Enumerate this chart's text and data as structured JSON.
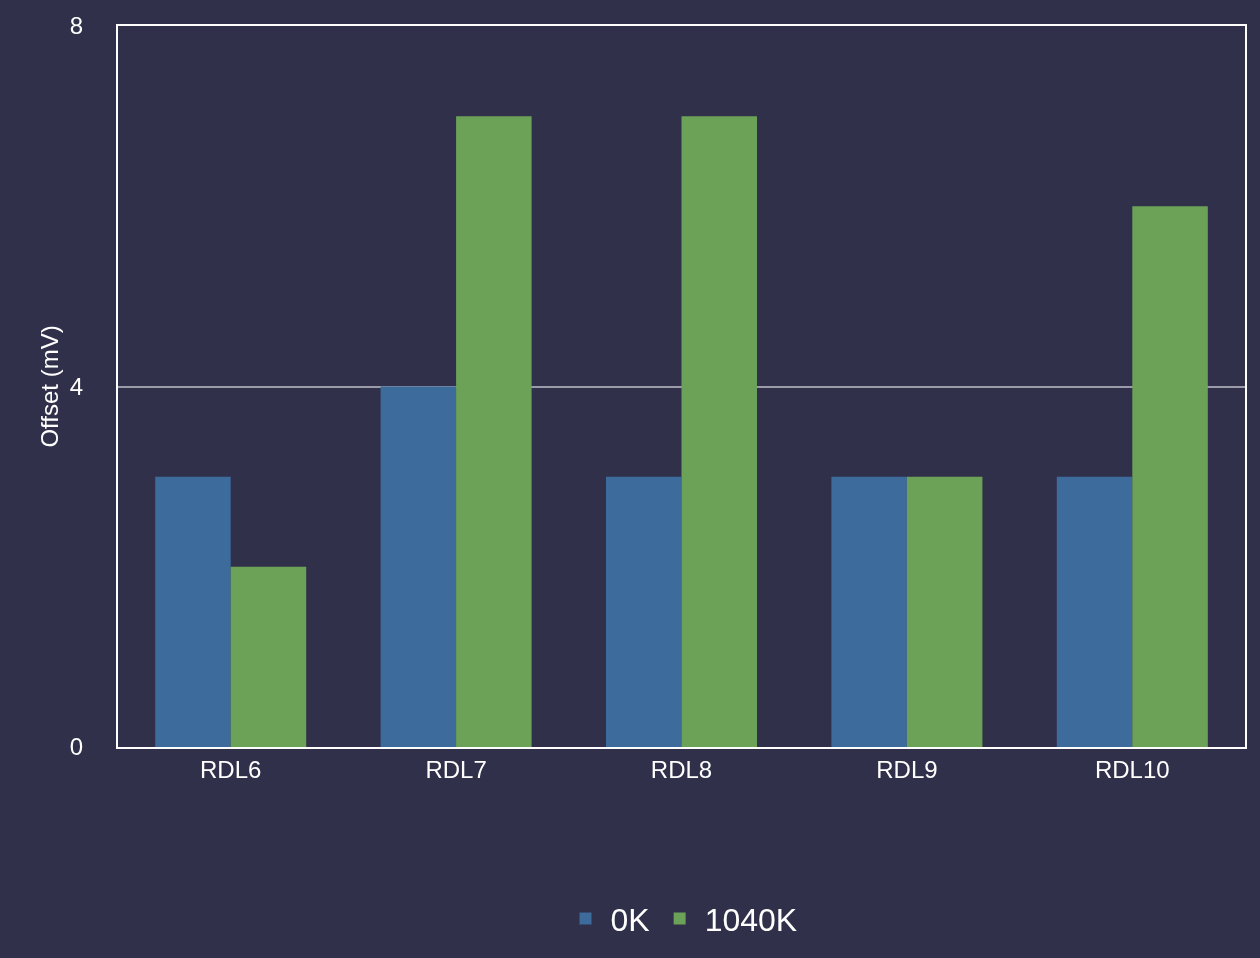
{
  "chart_data": {
    "type": "bar",
    "ylabel": "Offset (mV)",
    "categories": [
      "RDL6",
      "RDL7",
      "RDL8",
      "RDL9",
      "RDL10"
    ],
    "series": [
      {
        "name": "0K",
        "color": "#3d6b9c",
        "values": [
          3,
          4,
          3,
          3,
          3
        ]
      },
      {
        "name": "1040K",
        "color": "#6ca257",
        "values": [
          2,
          7,
          7,
          3,
          6
        ]
      }
    ],
    "ylim": [
      0,
      8
    ],
    "yticks": [
      0,
      4,
      8
    ],
    "grid": "y",
    "legend": "bottom"
  }
}
